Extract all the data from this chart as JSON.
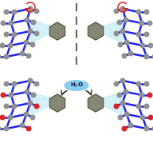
{
  "bg_color": "#ffffff",
  "blue_color": "#2222ee",
  "node_color": "#909090",
  "red_color": "#dd2222",
  "hexagon_color": "#878775",
  "hexagon_edge": "#555544",
  "light_blue": "#b8e8f8",
  "arrow_color": "#333333",
  "h2o_bg": "#88ccee",
  "h2o_text": "#111133",
  "dashed_color": "#666666",
  "fig_width": 1.92,
  "fig_height": 1.89,
  "dpi": 100
}
